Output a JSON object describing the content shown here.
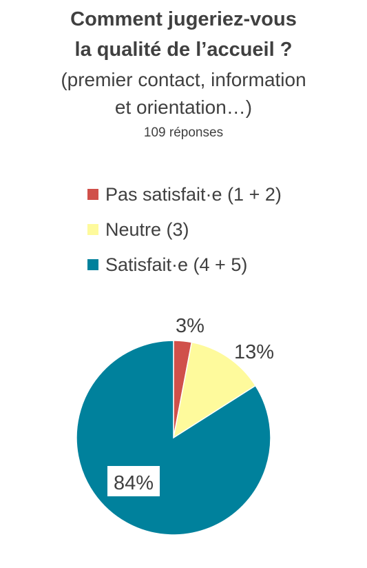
{
  "chart_data": {
    "type": "pie",
    "title_lines": [
      "Comment jugeriez-vous",
      "la qualité de l’accueil ?"
    ],
    "subtitle_lines": [
      "(premier contact, information",
      "et orientation…)"
    ],
    "responses_text": "109 réponses",
    "categories": [
      "Pas satisfait·e (1 + 2)",
      "Neutre (3)",
      "Satisfait·e (4 + 5)"
    ],
    "values": [
      3,
      13,
      84
    ],
    "data_labels": [
      "3%",
      "13%",
      "84%"
    ],
    "colors": [
      "#d0504a",
      "#fefa9c",
      "#00819c"
    ],
    "legend_position": "top",
    "start_angle": "12 o'clock",
    "direction": "clockwise"
  }
}
